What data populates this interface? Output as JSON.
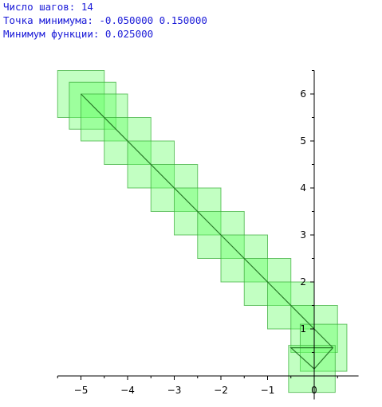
{
  "output": {
    "steps_line": "Число шагов: 14",
    "minimum_point_line": "Точка минимума: -0.050000 0.150000",
    "minimum_value_line": "Минимум функции: 0.025000"
  },
  "chart_data": {
    "type": "scatter",
    "title": "",
    "xlabel": "",
    "ylabel": "",
    "xlim": [
      -5.5,
      0.95
    ],
    "ylim": [
      -0.5,
      6.5
    ],
    "x_ticks": [
      -5,
      -4,
      -3,
      -2,
      -1,
      0
    ],
    "y_ticks": [
      1,
      2,
      3,
      4,
      5,
      6
    ],
    "grid": false,
    "colors": {
      "square_fill": "#66ff66",
      "square_stroke": "#33aa33",
      "path_line": "#2a7a2a",
      "axis": "#000000"
    },
    "squares": [
      {
        "cx": -5.0,
        "cy": 6.0,
        "side": 1.0
      },
      {
        "cx": -4.75,
        "cy": 5.75,
        "side": 1.0
      },
      {
        "cx": -4.5,
        "cy": 5.5,
        "side": 1.0
      },
      {
        "cx": -4.0,
        "cy": 5.0,
        "side": 1.0
      },
      {
        "cx": -3.5,
        "cy": 4.5,
        "side": 1.0
      },
      {
        "cx": -3.0,
        "cy": 4.0,
        "side": 1.0
      },
      {
        "cx": -2.5,
        "cy": 3.5,
        "side": 1.0
      },
      {
        "cx": -2.0,
        "cy": 3.0,
        "side": 1.0
      },
      {
        "cx": -1.5,
        "cy": 2.5,
        "side": 1.0
      },
      {
        "cx": -1.0,
        "cy": 2.0,
        "side": 1.0
      },
      {
        "cx": -0.5,
        "cy": 1.5,
        "side": 1.0
      },
      {
        "cx": 0.0,
        "cy": 1.0,
        "side": 1.0
      },
      {
        "cx": 0.2,
        "cy": 0.6,
        "side": 1.0
      },
      {
        "cx": -0.05,
        "cy": 0.15,
        "side": 1.0
      }
    ],
    "path": [
      {
        "x": -5.0,
        "y": 6.0
      },
      {
        "x": 0.0,
        "y": 1.0
      },
      {
        "x": 0.4,
        "y": 0.6
      },
      {
        "x": 0.0,
        "y": 0.15
      },
      {
        "x": -0.5,
        "y": 0.6
      },
      {
        "x": 0.4,
        "y": 0.6
      }
    ]
  }
}
